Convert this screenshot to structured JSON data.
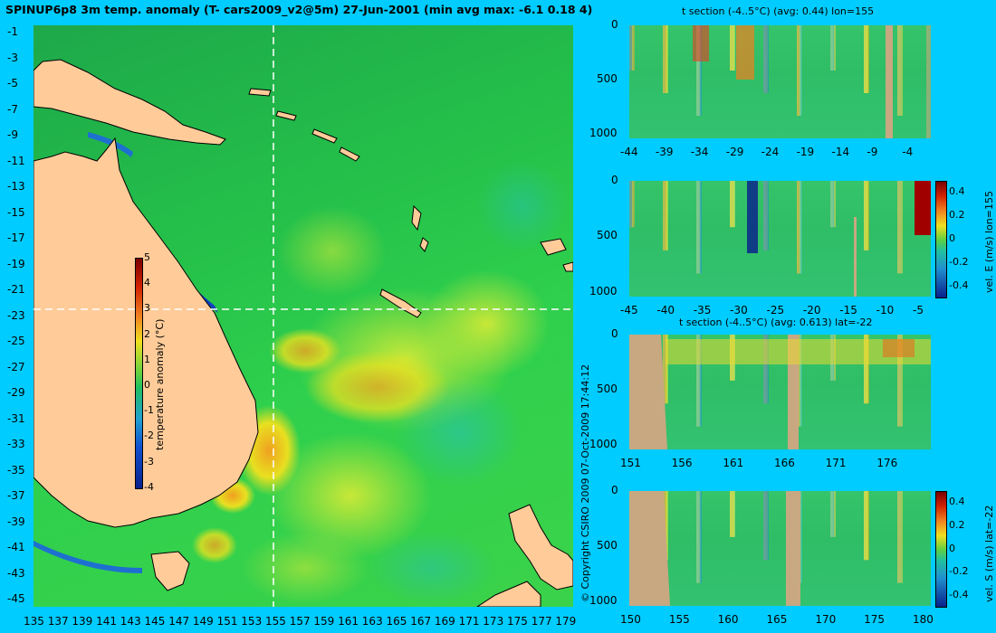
{
  "title": "SPINUP6p8 3m temp. anomaly (T- cars2009_v2@5m) 27-Jun-2001 (min avg max: -6.1 0.18 4)",
  "map": {
    "lat_ticks": [
      "-1",
      "-3",
      "-5",
      "-7",
      "-9",
      "-11",
      "-13",
      "-15",
      "-17",
      "-19",
      "-21",
      "-23",
      "-25",
      "-27",
      "-29",
      "-31",
      "-33",
      "-35",
      "-37",
      "-39",
      "-41",
      "-43",
      "-45"
    ],
    "lon_ticks": [
      "135",
      "137",
      "139",
      "141",
      "143",
      "145",
      "147",
      "149",
      "151",
      "153",
      "155",
      "157",
      "159",
      "161",
      "163",
      "165",
      "167",
      "169",
      "171",
      "173",
      "175",
      "177",
      "179"
    ],
    "section_lon": 155,
    "section_lat": -22,
    "colorbar": {
      "label": "temperature anomaly (°C)",
      "ticks": [
        "5",
        "4",
        "3",
        "2",
        "1",
        "0",
        "-1",
        "-2",
        "-3",
        "-4"
      ]
    }
  },
  "panels": [
    {
      "title": "t section (-4..5°C) (avg: 0.44) lon=155",
      "x_ticks": [
        "-44",
        "-39",
        "-34",
        "-29",
        "-24",
        "-19",
        "-14",
        "-9",
        "-4"
      ],
      "y_ticks": [
        "0",
        "500",
        "1000"
      ]
    },
    {
      "title": "",
      "x_ticks": [
        "-45",
        "-40",
        "-35",
        "-30",
        "-25",
        "-20",
        "-15",
        "-10",
        "-5"
      ],
      "y_ticks": [
        "0",
        "500",
        "1000"
      ],
      "colorbar_label": "vel. E (m/s) lon=155",
      "colorbar_ticks": [
        "0.4",
        "0.2",
        "0",
        "-0.2",
        "-0.4"
      ]
    },
    {
      "title": "t section (-4..5°C) (avg: 0.613) lat=-22",
      "x_ticks": [
        "151",
        "156",
        "161",
        "166",
        "171",
        "176"
      ],
      "y_ticks": [
        "0",
        "500",
        "1000"
      ]
    },
    {
      "title": "",
      "x_ticks": [
        "150",
        "155",
        "160",
        "165",
        "170",
        "175",
        "180"
      ],
      "y_ticks": [
        "0",
        "500",
        "1000"
      ],
      "colorbar_label": "vel. S (m/s) lat=-22",
      "colorbar_ticks": [
        "0.4",
        "0.2",
        "0",
        "-0.2",
        "-0.4"
      ]
    }
  ],
  "copyright": "© Copyright CSIRO 2009   07-Oct-2009 17:44:12"
}
